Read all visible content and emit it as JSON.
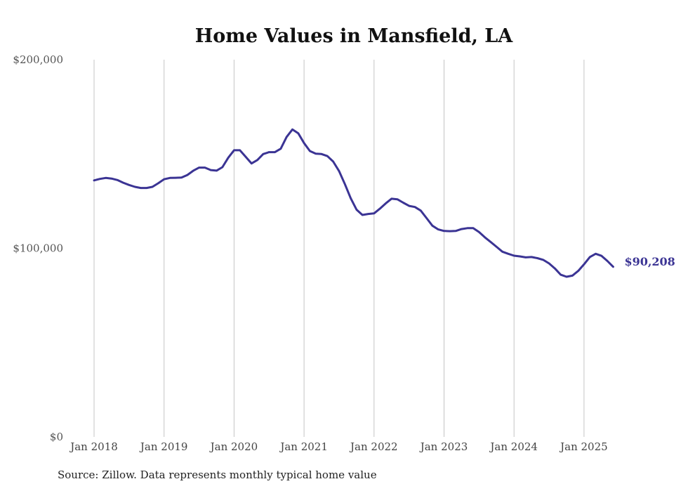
{
  "chart_data": {
    "type": "line",
    "title": "Home Values in Mansfield, LA",
    "xlabel": "",
    "ylabel": "",
    "ylim": [
      0,
      200000
    ],
    "yticks": [
      0,
      100000,
      200000
    ],
    "ytick_labels": [
      "$0",
      "$100,000",
      "$200,000"
    ],
    "xticks": [
      "2018-01",
      "2019-01",
      "2020-01",
      "2021-01",
      "2022-01",
      "2023-01",
      "2024-01",
      "2025-01"
    ],
    "xtick_labels": [
      "Jan 2018",
      "Jan 2019",
      "Jan 2020",
      "Jan 2021",
      "Jan 2022",
      "Jan 2023",
      "Jan 2024",
      "Jan 2025"
    ],
    "grid": "vertical",
    "legend": "none",
    "series": [
      {
        "name": "Typical home value",
        "color": "#3b3494",
        "end_label": "$90,208",
        "x": [
          "2018-01",
          "2018-02",
          "2018-03",
          "2018-04",
          "2018-05",
          "2018-06",
          "2018-07",
          "2018-08",
          "2018-09",
          "2018-10",
          "2018-11",
          "2018-12",
          "2019-01",
          "2019-02",
          "2019-03",
          "2019-04",
          "2019-05",
          "2019-06",
          "2019-07",
          "2019-08",
          "2019-09",
          "2019-10",
          "2019-11",
          "2019-12",
          "2020-01",
          "2020-02",
          "2020-03",
          "2020-04",
          "2020-05",
          "2020-06",
          "2020-07",
          "2020-08",
          "2020-09",
          "2020-10",
          "2020-11",
          "2020-12",
          "2021-01",
          "2021-02",
          "2021-03",
          "2021-04",
          "2021-05",
          "2021-06",
          "2021-07",
          "2021-08",
          "2021-09",
          "2021-10",
          "2021-11",
          "2021-12",
          "2022-01",
          "2022-02",
          "2022-03",
          "2022-04",
          "2022-05",
          "2022-06",
          "2022-07",
          "2022-08",
          "2022-09",
          "2022-10",
          "2022-11",
          "2022-12",
          "2023-01",
          "2023-02",
          "2023-03",
          "2023-04",
          "2023-05",
          "2023-06",
          "2023-07",
          "2023-08",
          "2023-09",
          "2023-10",
          "2023-11",
          "2023-12",
          "2024-01",
          "2024-02",
          "2024-03",
          "2024-04",
          "2024-05",
          "2024-06",
          "2024-07",
          "2024-08",
          "2024-09",
          "2024-10",
          "2024-11",
          "2024-12",
          "2025-01",
          "2025-02",
          "2025-03",
          "2025-04",
          "2025-05",
          "2025-06"
        ],
        "values": [
          136000,
          136800,
          137300,
          137000,
          136200,
          134800,
          133600,
          132600,
          132000,
          132000,
          132600,
          134500,
          136600,
          137300,
          137400,
          137500,
          138900,
          141100,
          142800,
          142800,
          141500,
          141200,
          143000,
          148000,
          152000,
          152000,
          148500,
          145000,
          146800,
          150000,
          151000,
          151000,
          152800,
          159000,
          163000,
          161000,
          155800,
          151600,
          150200,
          150000,
          148900,
          146000,
          141000,
          134000,
          126500,
          120500,
          117700,
          118200,
          118500,
          121000,
          123800,
          126300,
          126000,
          124200,
          122500,
          121900,
          120000,
          116000,
          112000,
          110000,
          109200,
          109100,
          109200,
          110200,
          110700,
          110700,
          108600,
          105800,
          103300,
          100800,
          98200,
          97100,
          96100,
          95700,
          95200,
          95400,
          94800,
          93900,
          92000,
          89300,
          86000,
          84900,
          85500,
          88000,
          91500,
          95400,
          97100,
          96000,
          93300,
          90208
        ]
      }
    ],
    "annotations": [
      "$90,208"
    ],
    "source": "Source: Zillow. Data represents monthly typical home value"
  }
}
